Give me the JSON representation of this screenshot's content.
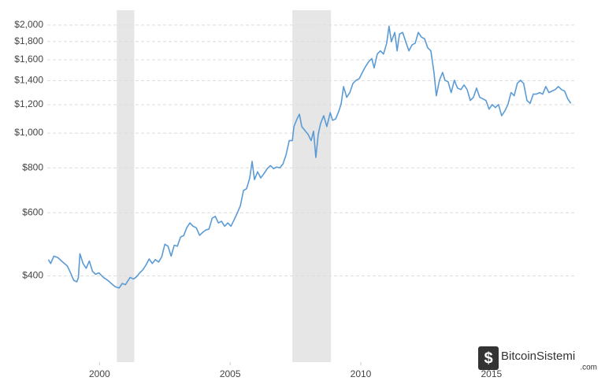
{
  "chart_data": {
    "type": "line",
    "log_y": true,
    "grid": true,
    "xlim": [
      1998.0,
      2018.2
    ],
    "xticks": [
      2000,
      2005,
      2010,
      2015
    ],
    "ylim": [
      230,
      2200
    ],
    "yticks": [
      {
        "value": 400,
        "label": "$400"
      },
      {
        "value": 600,
        "label": "$600"
      },
      {
        "value": 800,
        "label": "$800"
      },
      {
        "value": 1000,
        "label": "$1,000"
      },
      {
        "value": 1200,
        "label": "$1,200"
      },
      {
        "value": 1400,
        "label": "$1,400"
      },
      {
        "value": 1600,
        "label": "$1,600"
      },
      {
        "value": 1800,
        "label": "$1,800"
      },
      {
        "value": 2000,
        "label": "$2,000"
      }
    ],
    "shaded_regions": [
      [
        2000.66,
        2001.33
      ],
      [
        2007.38,
        2008.86
      ]
    ],
    "shade_color": "#e6e6e6",
    "x": [
      1998.04,
      1998.13,
      1998.25,
      1998.4,
      1998.58,
      1998.77,
      1998.89,
      1999.01,
      1999.13,
      1999.19,
      1999.25,
      1999.37,
      1999.49,
      1999.61,
      1999.73,
      1999.85,
      1999.97,
      2000.15,
      2000.33,
      2000.45,
      2000.6,
      2000.75,
      2000.87,
      2000.99,
      2001.17,
      2001.3,
      2001.42,
      2001.54,
      2001.66,
      2001.78,
      2001.9,
      2002.02,
      2002.14,
      2002.26,
      2002.38,
      2002.5,
      2002.62,
      2002.74,
      2002.86,
      2002.98,
      2003.1,
      2003.22,
      2003.34,
      2003.46,
      2003.58,
      2003.7,
      2003.83,
      2003.95,
      2004.07,
      2004.19,
      2004.31,
      2004.43,
      2004.55,
      2004.67,
      2004.79,
      2004.91,
      2005.03,
      2005.15,
      2005.27,
      2005.39,
      2005.51,
      2005.63,
      2005.75,
      2005.84,
      2005.93,
      2006.05,
      2006.17,
      2006.3,
      2006.42,
      2006.54,
      2006.66,
      2006.78,
      2006.9,
      2007.02,
      2007.14,
      2007.26,
      2007.38,
      2007.44,
      2007.56,
      2007.65,
      2007.74,
      2007.86,
      2007.98,
      2008.1,
      2008.19,
      2008.28,
      2008.37,
      2008.46,
      2008.58,
      2008.7,
      2008.83,
      2008.92,
      2009.04,
      2009.16,
      2009.25,
      2009.34,
      2009.46,
      2009.58,
      2009.7,
      2009.82,
      2009.94,
      2010.06,
      2010.18,
      2010.3,
      2010.42,
      2010.51,
      2010.63,
      2010.75,
      2010.87,
      2010.99,
      2011.08,
      2011.17,
      2011.3,
      2011.39,
      2011.48,
      2011.6,
      2011.72,
      2011.84,
      2011.96,
      2012.08,
      2012.2,
      2012.32,
      2012.44,
      2012.56,
      2012.68,
      2012.8,
      2012.89,
      2013.01,
      2013.13,
      2013.22,
      2013.34,
      2013.46,
      2013.58,
      2013.7,
      2013.83,
      2013.95,
      2014.07,
      2014.19,
      2014.31,
      2014.43,
      2014.55,
      2014.67,
      2014.79,
      2014.91,
      2015.03,
      2015.15,
      2015.27,
      2015.39,
      2015.51,
      2015.63,
      2015.75,
      2015.87,
      2015.99,
      2016.11,
      2016.23,
      2016.36,
      2016.48,
      2016.6,
      2016.72,
      2016.84,
      2016.96,
      2017.08,
      2017.2,
      2017.32,
      2017.44,
      2017.56,
      2017.68,
      2017.8,
      2017.92,
      2018.04
    ],
    "series": [
      {
        "color": "#5b9bd5",
        "values": [
          444,
          433,
          454,
          450,
          438,
          426,
          408,
          389,
          385,
          395,
          461,
          433,
          420,
          440,
          412,
          404,
          408,
          396,
          388,
          381,
          373,
          370,
          381,
          378,
          396,
          392,
          398,
          408,
          416,
          429,
          446,
          433,
          444,
          437,
          452,
          490,
          484,
          454,
          487,
          484,
          513,
          518,
          545,
          562,
          550,
          545,
          519,
          529,
          537,
          540,
          579,
          586,
          562,
          568,
          550,
          562,
          550,
          573,
          598,
          627,
          692,
          700,
          750,
          834,
          742,
          780,
          750,
          772,
          796,
          812,
          796,
          804,
          800,
          820,
          870,
          953,
          953,
          1043,
          1096,
          1129,
          1043,
          1017,
          992,
          953,
          1012,
          855,
          992,
          1064,
          1118,
          1043,
          1140,
          1085,
          1096,
          1152,
          1210,
          1348,
          1258,
          1297,
          1376,
          1404,
          1418,
          1476,
          1533,
          1581,
          1613,
          1519,
          1661,
          1695,
          1661,
          1780,
          1986,
          1798,
          1908,
          1695,
          1888,
          1908,
          1798,
          1695,
          1762,
          1780,
          1908,
          1851,
          1832,
          1729,
          1695,
          1476,
          1271,
          1404,
          1476,
          1404,
          1390,
          1297,
          1404,
          1335,
          1322,
          1362,
          1322,
          1233,
          1258,
          1335,
          1258,
          1246,
          1233,
          1166,
          1201,
          1178,
          1201,
          1118,
          1152,
          1201,
          1297,
          1271,
          1376,
          1404,
          1376,
          1233,
          1210,
          1284,
          1284,
          1297,
          1284,
          1348,
          1297,
          1310,
          1322,
          1348,
          1322,
          1310,
          1246,
          1210
        ]
      }
    ]
  },
  "watermark": {
    "text": "BitcoinSistemi",
    "suffix": ".com"
  }
}
